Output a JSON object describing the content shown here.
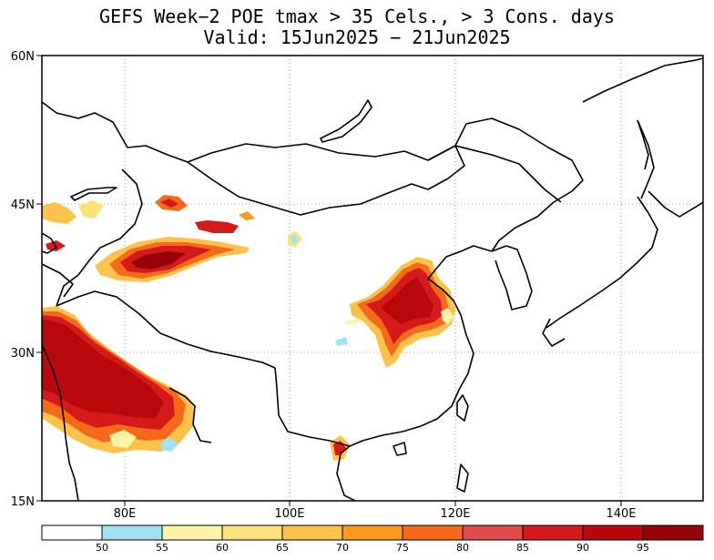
{
  "title": {
    "line1": "GEFS Week−2 POE tmax > 35 Cels., > 3 Cons. days",
    "line2": "Valid: 15Jun2025 − 21Jun2025"
  },
  "map": {
    "lat_labels": [
      "60N",
      "45N",
      "30N",
      "15N"
    ],
    "lon_labels": [
      "80E",
      "100E",
      "120E",
      "140E"
    ],
    "lat_range": [
      15,
      60
    ],
    "lon_range": [
      70,
      150
    ],
    "gridlines": "dotted"
  },
  "colorbar": {
    "tick_labels": [
      "50",
      "55",
      "60",
      "65",
      "70",
      "75",
      "80",
      "85",
      "90",
      "95"
    ],
    "colors": [
      "#ffffff",
      "#9fe3f2",
      "#fff3a8",
      "#fde27a",
      "#fcc24c",
      "#fb9a1e",
      "#f46a1a",
      "#e04c4c",
      "#d41a1a",
      "#b8080c",
      "#96040a"
    ]
  },
  "colors": {
    "land_outline": "#000000",
    "grid": "#999999",
    "prob_low": "#fcc24c",
    "prob_mid": "#f46a1a",
    "prob_high": "#d41a1a",
    "prob_max": "#96040a"
  }
}
